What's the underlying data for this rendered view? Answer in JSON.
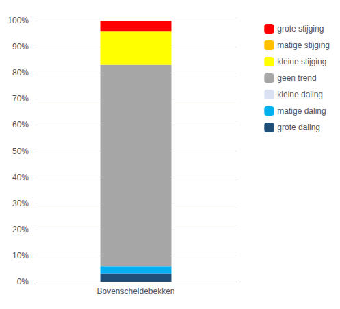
{
  "chart_data": {
    "type": "bar",
    "stacked": true,
    "grid": true,
    "legend": "right",
    "categories": [
      "Bovenscheldebekken"
    ],
    "series": [
      {
        "name": "grote daling",
        "color": "#1F4E79",
        "values": [
          3
        ]
      },
      {
        "name": "matige daling",
        "color": "#00B0F0",
        "values": [
          3
        ]
      },
      {
        "name": "kleine daling",
        "color": "#D9E1F2",
        "values": [
          0
        ]
      },
      {
        "name": "geen trend",
        "color": "#A6A6A6",
        "values": [
          77
        ]
      },
      {
        "name": "kleine stijging",
        "color": "#FFFF00",
        "values": [
          13
        ]
      },
      {
        "name": "matige stijging",
        "color": "#FFC000",
        "values": [
          0
        ]
      },
      {
        "name": "grote stijging",
        "color": "#FF0000",
        "values": [
          4
        ]
      }
    ],
    "ylim": [
      0,
      100
    ],
    "yticks": [
      {
        "value": 0,
        "label": "0%"
      },
      {
        "value": 10,
        "label": "10%"
      },
      {
        "value": 20,
        "label": "20%"
      },
      {
        "value": 30,
        "label": "30%"
      },
      {
        "value": 40,
        "label": "40%"
      },
      {
        "value": 50,
        "label": "50%"
      },
      {
        "value": 60,
        "label": "60%"
      },
      {
        "value": 70,
        "label": "70%"
      },
      {
        "value": 80,
        "label": "80%"
      },
      {
        "value": 90,
        "label": "90%"
      },
      {
        "value": 100,
        "label": "100%"
      }
    ]
  }
}
